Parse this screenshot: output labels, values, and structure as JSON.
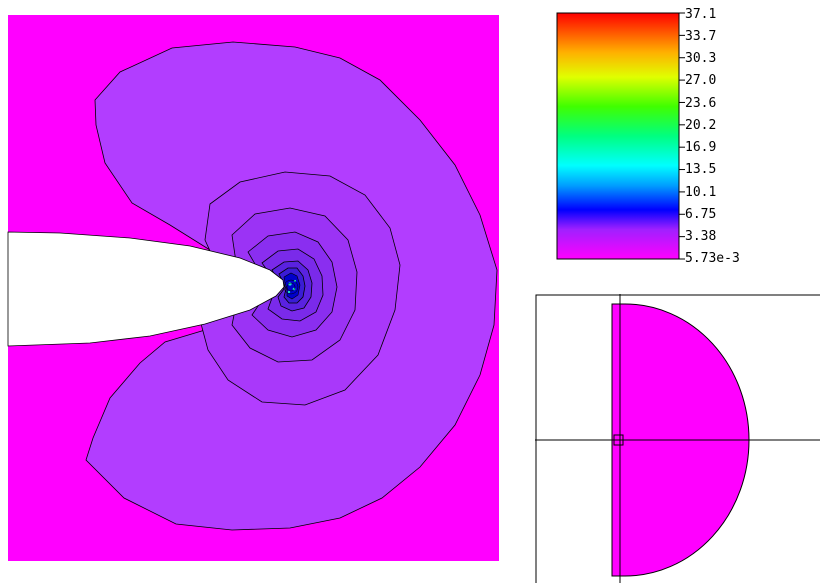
{
  "colorbar": {
    "tick_labels": [
      "37.1",
      "33.7",
      "30.3",
      "27.0",
      "23.6",
      "20.2",
      "16.9",
      "13.5",
      "10.1",
      "6.75",
      "3.38",
      "5.73e-3"
    ],
    "max": 37.1,
    "min": 0.00573
  },
  "colors": {
    "background_field": "#ff00ff",
    "outer_contour_fill": "#b23dff",
    "crack_tip_core": "#0000cc",
    "line": "#000000"
  }
}
